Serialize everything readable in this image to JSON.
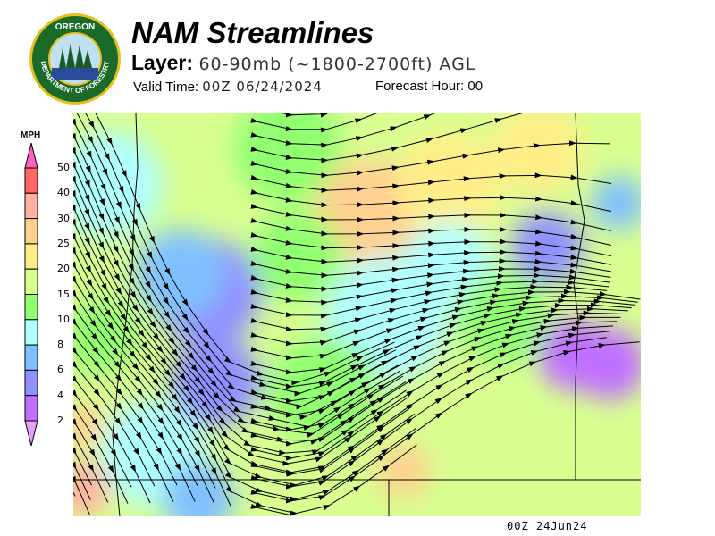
{
  "header": {
    "title": "NAM Streamlines",
    "layer_label": "Layer:",
    "layer_value": "60-90mb (~1800-2700ft) AGL",
    "valid_label": "Valid Time:",
    "valid_value": "00Z 06/24/2024",
    "forecast_label": "Forecast Hour:",
    "forecast_value": "00"
  },
  "logo": {
    "top_text": "OREGON",
    "bottom_text": "DEPARTMENT OF FORESTRY"
  },
  "legend": {
    "units": "MPH",
    "labels": [
      "50",
      "40",
      "30",
      "25",
      "20",
      "15",
      "10",
      "8",
      "6",
      "4",
      "2"
    ],
    "colors": [
      "#ff6666",
      "#ffb0a0",
      "#ffd090",
      "#ffee88",
      "#d8ff90",
      "#90ff70",
      "#b0ffff",
      "#80c0ff",
      "#9090ff",
      "#c070ff"
    ],
    "over_color": "#ff60c0",
    "under_color": "#e8a0ff"
  },
  "footer": {
    "timestamp": "00Z 24Jun24"
  }
}
